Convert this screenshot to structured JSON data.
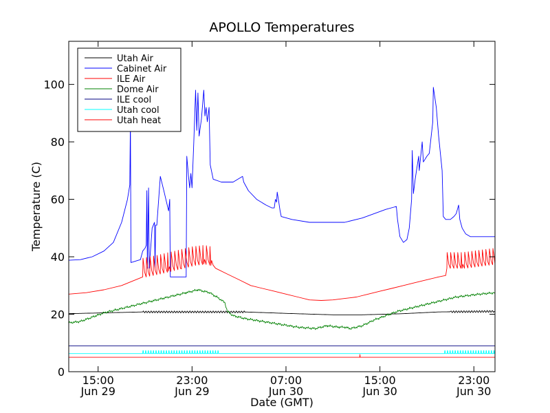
{
  "chart_data": {
    "type": "line",
    "title": "APOLLO Temperatures",
    "xlabel": "Date (GMT)",
    "ylabel": "Temperature (C)",
    "xlim": [
      12.5,
      48.8
    ],
    "ylim": [
      0,
      115
    ],
    "grid": false,
    "legend_position": "top-left",
    "x_units": "hours since Jun 29 00:00 GMT",
    "yticks": [
      {
        "value": 0,
        "label": "0"
      },
      {
        "value": 20,
        "label": "20"
      },
      {
        "value": 40,
        "label": "40"
      },
      {
        "value": 60,
        "label": "60"
      },
      {
        "value": 80,
        "label": "80"
      },
      {
        "value": 100,
        "label": "100"
      }
    ],
    "xticks": [
      {
        "value": 15,
        "time": "15:00",
        "date": "Jun 29"
      },
      {
        "value": 23,
        "time": "23:00",
        "date": "Jun 29"
      },
      {
        "value": 31,
        "time": "07:00",
        "date": "Jun 30"
      },
      {
        "value": 39,
        "time": "15:00",
        "date": "Jun 30"
      },
      {
        "value": 47,
        "time": "23:00",
        "date": "Jun 30"
      }
    ],
    "series": [
      {
        "name": "Utah Air",
        "color": "#000000",
        "oscillate": [
          [
            18.8,
            27.5,
            0.22,
            0.7
          ],
          [
            45.0,
            48.8,
            0.22,
            0.7
          ]
        ],
        "points": [
          [
            12.5,
            20.2
          ],
          [
            18.8,
            20.8
          ],
          [
            23.0,
            20.8
          ],
          [
            27.5,
            20.8
          ],
          [
            31.0,
            20.3
          ],
          [
            35.0,
            19.8
          ],
          [
            37.5,
            19.8
          ],
          [
            41.0,
            20.2
          ],
          [
            44.0,
            20.8
          ],
          [
            48.8,
            21.0
          ]
        ]
      },
      {
        "name": "Cabinet Air",
        "color": "#0000ff",
        "points": [
          [
            12.5,
            38.8
          ],
          [
            13.5,
            39
          ],
          [
            14.5,
            40
          ],
          [
            15.5,
            42
          ],
          [
            16.3,
            45
          ],
          [
            17.0,
            52
          ],
          [
            17.5,
            60
          ],
          [
            17.7,
            65
          ],
          [
            17.75,
            88
          ],
          [
            17.8,
            38
          ],
          [
            18.6,
            39
          ],
          [
            18.8,
            42
          ],
          [
            19.0,
            43
          ],
          [
            19.1,
            44
          ],
          [
            19.15,
            63
          ],
          [
            19.2,
            36
          ],
          [
            19.3,
            64
          ],
          [
            19.35,
            36
          ],
          [
            19.6,
            50
          ],
          [
            19.8,
            52
          ],
          [
            19.85,
            36
          ],
          [
            19.9,
            51
          ],
          [
            20.0,
            51
          ],
          [
            20.3,
            68
          ],
          [
            20.6,
            63
          ],
          [
            21.0,
            56
          ],
          [
            21.1,
            60
          ],
          [
            21.15,
            33
          ],
          [
            21.4,
            33
          ],
          [
            22.0,
            33
          ],
          [
            22.5,
            33
          ],
          [
            22.55,
            75
          ],
          [
            22.7,
            68
          ],
          [
            22.8,
            64
          ],
          [
            22.9,
            69
          ],
          [
            23.0,
            64
          ],
          [
            23.15,
            80
          ],
          [
            23.3,
            98
          ],
          [
            23.4,
            84
          ],
          [
            23.5,
            97
          ],
          [
            23.6,
            82
          ],
          [
            23.8,
            88
          ],
          [
            24.0,
            98
          ],
          [
            24.1,
            89
          ],
          [
            24.2,
            92
          ],
          [
            24.3,
            87
          ],
          [
            24.45,
            92
          ],
          [
            24.55,
            72
          ],
          [
            24.8,
            67
          ],
          [
            25.5,
            66
          ],
          [
            26.0,
            66
          ],
          [
            26.5,
            66
          ],
          [
            27.3,
            68
          ],
          [
            27.4,
            66
          ],
          [
            27.8,
            63
          ],
          [
            28.5,
            60
          ],
          [
            29.3,
            58
          ],
          [
            29.8,
            57
          ],
          [
            30.0,
            57
          ],
          [
            30.1,
            60
          ],
          [
            30.2,
            59
          ],
          [
            30.25,
            62.5
          ],
          [
            30.35,
            60
          ],
          [
            30.5,
            56
          ],
          [
            30.6,
            54
          ],
          [
            31.5,
            53
          ],
          [
            33.0,
            52
          ],
          [
            34.0,
            52
          ],
          [
            35.5,
            52
          ],
          [
            36.0,
            52
          ],
          [
            37.5,
            53.5
          ],
          [
            38.5,
            55
          ],
          [
            39.5,
            56.5
          ],
          [
            40.4,
            57.5
          ],
          [
            40.5,
            53
          ],
          [
            40.7,
            47
          ],
          [
            41.0,
            45
          ],
          [
            41.3,
            46
          ],
          [
            41.5,
            50
          ],
          [
            41.7,
            60
          ],
          [
            41.75,
            77
          ],
          [
            41.85,
            62
          ],
          [
            42.0,
            67
          ],
          [
            42.3,
            75
          ],
          [
            42.35,
            70
          ],
          [
            42.6,
            80
          ],
          [
            42.7,
            73
          ],
          [
            43.0,
            75
          ],
          [
            43.2,
            76
          ],
          [
            43.5,
            87
          ],
          [
            43.55,
            99
          ],
          [
            43.8,
            92
          ],
          [
            44.0,
            82
          ],
          [
            44.3,
            70
          ],
          [
            44.4,
            54
          ],
          [
            44.6,
            53
          ],
          [
            45.0,
            53
          ],
          [
            45.3,
            54
          ],
          [
            45.5,
            55
          ],
          [
            45.7,
            58
          ],
          [
            45.8,
            53
          ],
          [
            46.0,
            50
          ],
          [
            46.3,
            48
          ],
          [
            46.7,
            47
          ],
          [
            48.8,
            47
          ]
        ]
      },
      {
        "name": "ILE Air",
        "color": "#ff0000",
        "spikes": [
          [
            18.8,
            24.6,
            0.3,
            2.5,
            6.5
          ],
          [
            44.7,
            48.8,
            0.3,
            2.5,
            5.5
          ]
        ],
        "points": [
          [
            12.5,
            27
          ],
          [
            14,
            27.5
          ],
          [
            15.5,
            28.5
          ],
          [
            17,
            30
          ],
          [
            18.8,
            33
          ],
          [
            20,
            34
          ],
          [
            21,
            35
          ],
          [
            22,
            36
          ],
          [
            23,
            37
          ],
          [
            24,
            37.5
          ],
          [
            24.6,
            37
          ],
          [
            25.0,
            36
          ],
          [
            26,
            34
          ],
          [
            27,
            32
          ],
          [
            28,
            30
          ],
          [
            29,
            29
          ],
          [
            30,
            28
          ],
          [
            31,
            27
          ],
          [
            32,
            26
          ],
          [
            33,
            25
          ],
          [
            34,
            24.8
          ],
          [
            35,
            25
          ],
          [
            36,
            25.5
          ],
          [
            37,
            26
          ],
          [
            38,
            27
          ],
          [
            39,
            28
          ],
          [
            40,
            29
          ],
          [
            41,
            30
          ],
          [
            42,
            31
          ],
          [
            43,
            32
          ],
          [
            44,
            33
          ],
          [
            44.6,
            33.5
          ],
          [
            44.7,
            36
          ],
          [
            46,
            36
          ],
          [
            48.8,
            37.5
          ]
        ]
      },
      {
        "name": "Dome Air",
        "color": "#008000",
        "noise": 0.45,
        "points": [
          [
            12.5,
            17
          ],
          [
            13.5,
            17.5
          ],
          [
            14.5,
            19
          ],
          [
            15.5,
            20.5
          ],
          [
            16.5,
            21.5
          ],
          [
            17.5,
            22.5
          ],
          [
            18.5,
            23.5
          ],
          [
            19.5,
            24.5
          ],
          [
            20.5,
            25.5
          ],
          [
            21.5,
            26.5
          ],
          [
            22.5,
            27.5
          ],
          [
            23.5,
            28.5
          ],
          [
            24.5,
            27.5
          ],
          [
            25.3,
            25.5
          ],
          [
            25.8,
            24
          ],
          [
            26.0,
            21
          ],
          [
            26.5,
            19.5
          ],
          [
            27.5,
            18.5
          ],
          [
            29.0,
            17.5
          ],
          [
            30.5,
            16.5
          ],
          [
            32.0,
            15.5
          ],
          [
            33.5,
            15
          ],
          [
            34.5,
            16
          ],
          [
            35.5,
            15.5
          ],
          [
            36.0,
            15.5
          ],
          [
            36.5,
            15
          ],
          [
            37.5,
            16
          ],
          [
            38.5,
            18
          ],
          [
            39.5,
            19.5
          ],
          [
            40.5,
            21
          ],
          [
            41.5,
            22
          ],
          [
            42.5,
            23
          ],
          [
            43.5,
            24
          ],
          [
            44.5,
            25
          ],
          [
            45.5,
            26
          ],
          [
            46.5,
            26.5
          ],
          [
            47.5,
            27
          ],
          [
            48.8,
            27.5
          ]
        ]
      },
      {
        "name": "ILE cool",
        "color": "#000080",
        "points": [
          [
            12.5,
            9
          ],
          [
            48.8,
            9
          ]
        ]
      },
      {
        "name": "Utah cool",
        "color": "#00ffff",
        "pulses": [
          [
            18.8,
            25.3,
            0.22,
            7.3
          ],
          [
            44.5,
            48.8,
            0.22,
            7.3
          ]
        ],
        "points": [
          [
            12.5,
            6.3
          ],
          [
            48.8,
            6.3
          ]
        ]
      },
      {
        "name": "Utah heat",
        "color": "#ff0000",
        "bumps": [
          [
            37.3,
            6.0
          ]
        ],
        "points": [
          [
            12.5,
            5
          ],
          [
            48.8,
            5
          ]
        ]
      }
    ]
  }
}
